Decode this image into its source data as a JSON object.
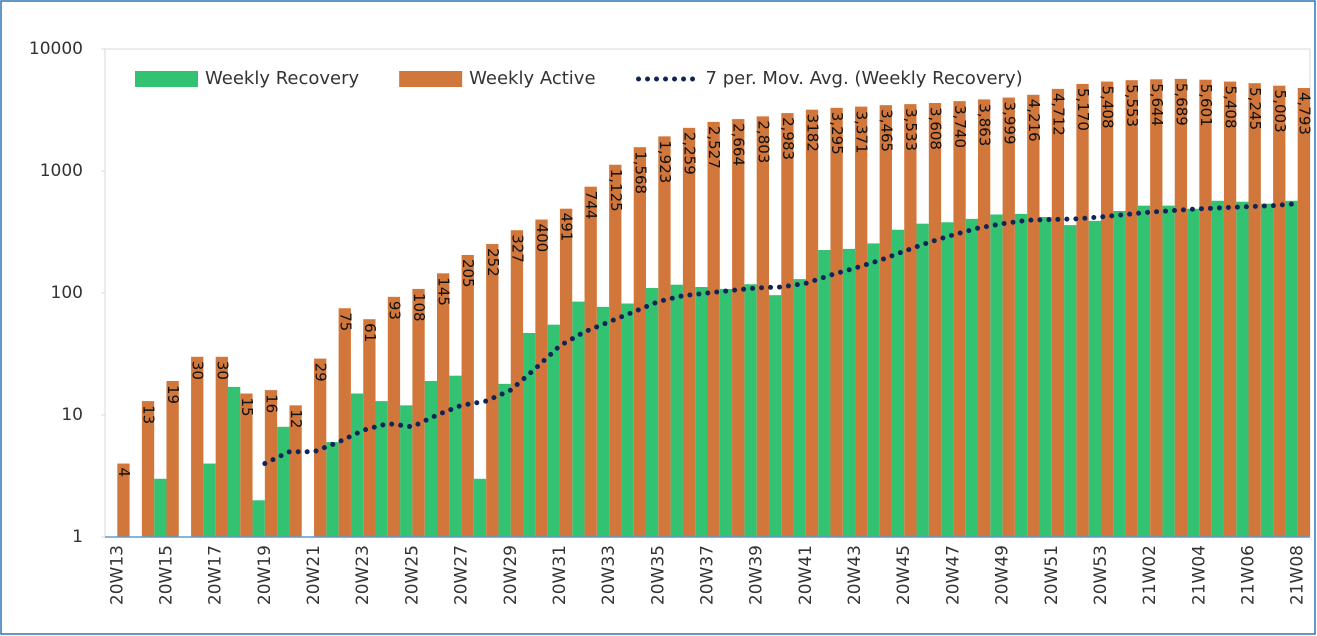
{
  "chart_data": {
    "type": "bar",
    "log": true,
    "categories": [
      "20W13",
      null,
      "20W15",
      null,
      "20W17",
      null,
      "20W19",
      null,
      "20W21",
      null,
      "20W23",
      null,
      "20W25",
      null,
      "20W27",
      null,
      "20W29",
      null,
      "20W31",
      null,
      "20W33",
      null,
      "20W35",
      null,
      "20W37",
      null,
      "20W39",
      null,
      "20W41",
      null,
      "20W43",
      null,
      "20W45",
      null,
      "20W47",
      null,
      "20W49",
      null,
      "20W51",
      null,
      "20W53",
      null,
      "21W02",
      null,
      "21W04",
      null,
      "21W06",
      null,
      "21W08"
    ],
    "ylim": [
      1,
      10000
    ],
    "yticks": [
      1,
      10,
      100,
      1000,
      10000
    ],
    "legend": "upper left",
    "series": [
      {
        "name": "Weekly Recovery",
        "color": "#33c172",
        "type": "bar",
        "values": [
          null,
          null,
          3,
          null,
          4,
          17,
          2,
          8,
          null,
          6,
          15,
          13,
          12,
          19,
          21,
          3,
          18,
          47,
          55,
          85,
          77,
          82,
          110,
          117,
          112,
          108,
          118,
          96,
          130,
          225,
          230,
          255,
          330,
          370,
          380,
          405,
          440,
          445,
          420,
          360,
          390,
          470,
          520,
          520,
          490,
          570,
          560,
          540,
          570
        ]
      },
      {
        "name": "Weekly Active",
        "color": "#d2773b",
        "type": "bar",
        "values": [
          4,
          13,
          19,
          30,
          30,
          15,
          16,
          12,
          29,
          75,
          61,
          93,
          108,
          145,
          205,
          252,
          327,
          400,
          491,
          744,
          1125,
          1568,
          1923,
          2259,
          2527,
          2664,
          2803,
          2983,
          3182,
          3295,
          3371,
          3465,
          3533,
          3608,
          3740,
          3863,
          3999,
          4216,
          4712,
          5170,
          5408,
          5553,
          5644,
          5689,
          5601,
          5408,
          5245,
          5003,
          4793
        ],
        "value_labels": [
          "4",
          "13",
          "19",
          "30",
          "30",
          "15",
          "16",
          "12",
          "29",
          "75",
          "61",
          "93",
          "108",
          "145",
          "205",
          "252",
          "327",
          "400",
          "491",
          "744",
          "1,125",
          "1,568",
          "1,923",
          "2,259",
          "2,527",
          "2,664",
          "2,803",
          "2,983",
          "3182",
          "3,295",
          "3,371",
          "3,465",
          "3,533",
          "3,608",
          "3,740",
          "3,863",
          "3,999",
          "4,216",
          "4,712",
          "5,170",
          "5,408",
          "5,553",
          "5,644",
          "5,689",
          "5,601",
          "5,408",
          "5,245",
          "5,003",
          "4,793"
        ]
      },
      {
        "name": "7 per. Mov. Avg. (Weekly Recovery)",
        "color": "#0f2557",
        "type": "line",
        "style": "dotted",
        "values": [
          null,
          null,
          null,
          null,
          null,
          null,
          4,
          5,
          5,
          6,
          7.5,
          8.5,
          8,
          10,
          12,
          13,
          16,
          24,
          37,
          48,
          58,
          70,
          85,
          95,
          100,
          105,
          110,
          112,
          120,
          140,
          160,
          185,
          220,
          260,
          300,
          340,
          370,
          395,
          400,
          405,
          420,
          440,
          460,
          475,
          490,
          500,
          510,
          520,
          540
        ]
      }
    ]
  }
}
